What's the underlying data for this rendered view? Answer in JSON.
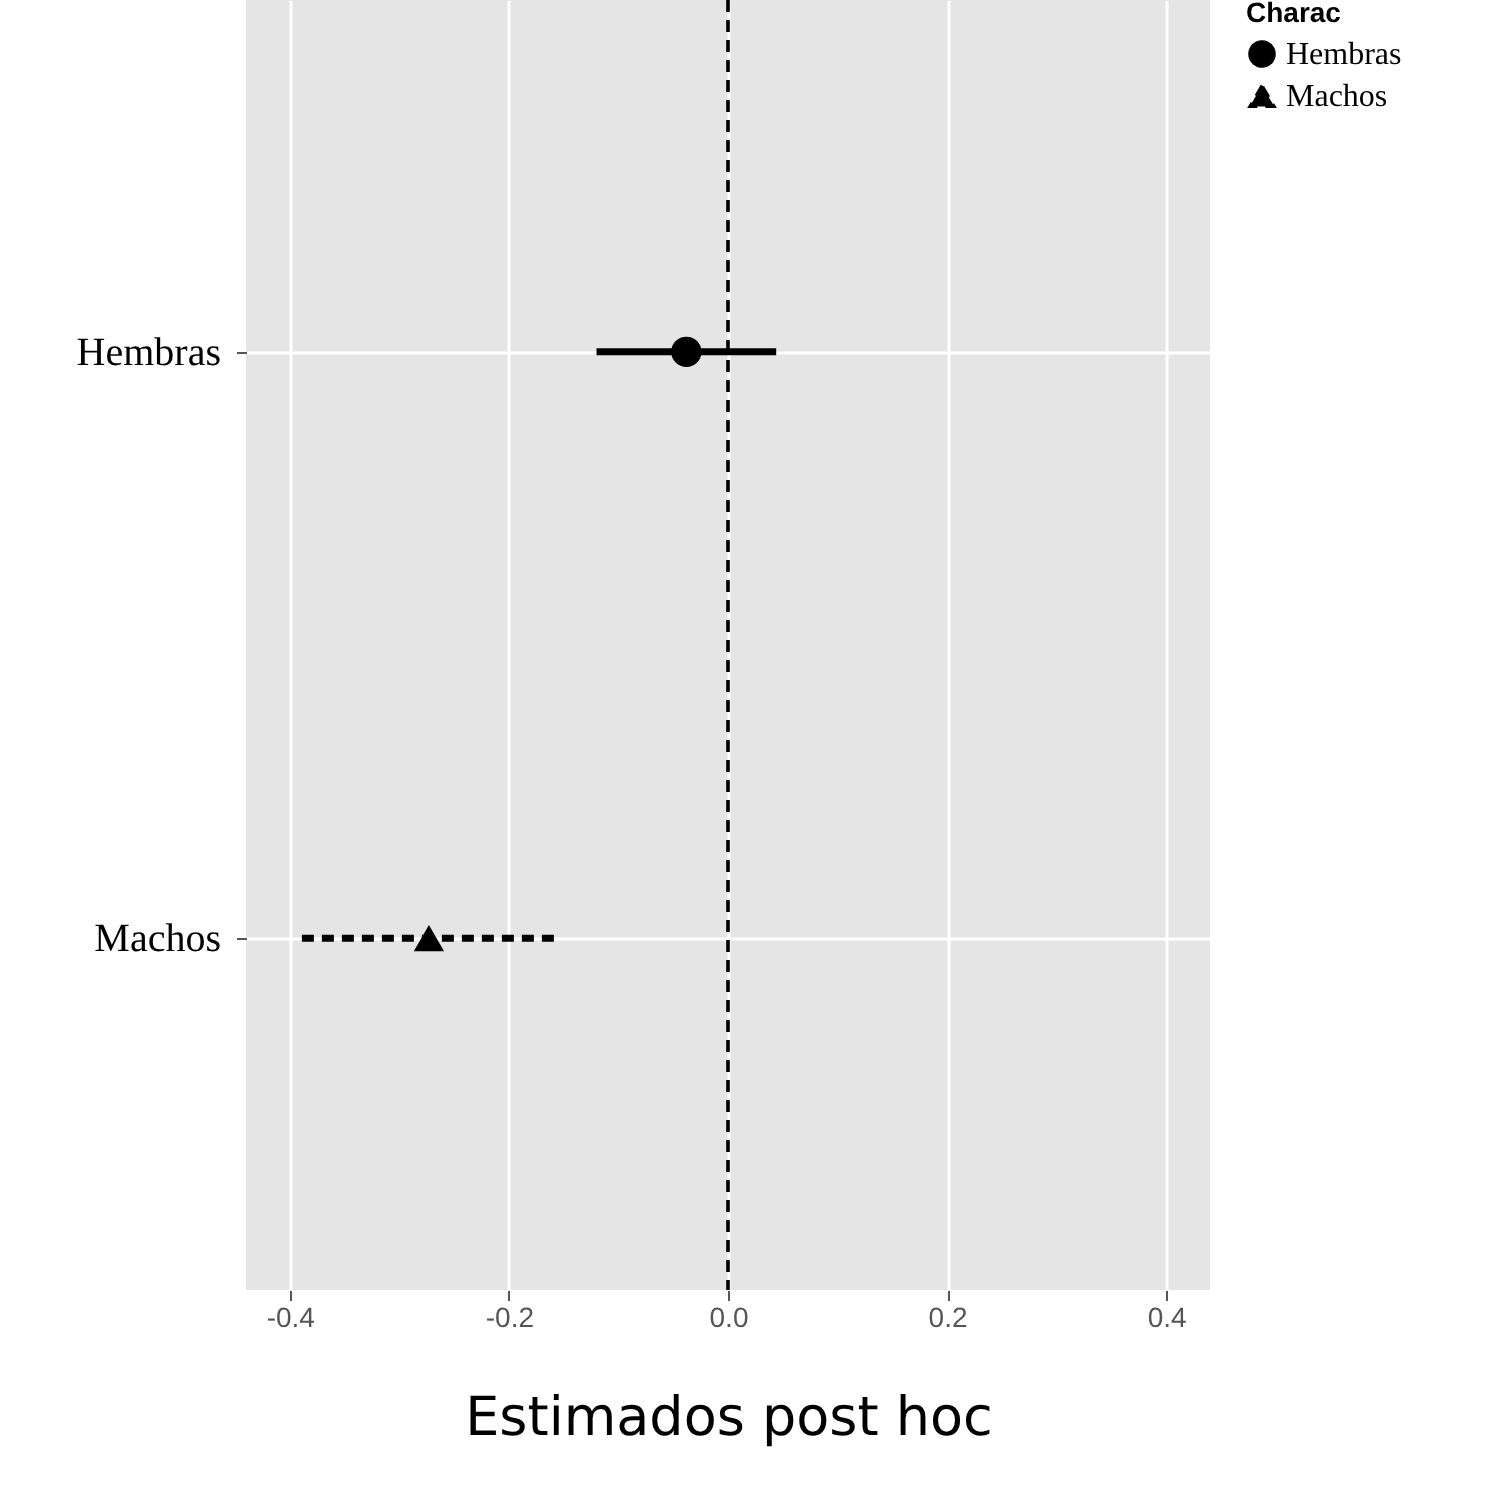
{
  "chart_data": {
    "type": "scatter",
    "orientation": "horizontal",
    "xlabel": "Estimados post hoc",
    "legend_title": "Charac",
    "legend": "right",
    "grid": true,
    "categories": [
      "Hembras",
      "Machos"
    ],
    "series": [
      {
        "name": "Hembras",
        "color": "#000000",
        "marker": "circle",
        "line_style": "solid",
        "values": [
          -0.038,
          null
        ],
        "errors": [
          [
            -0.12,
            0.044
          ],
          null
        ]
      },
      {
        "name": "Machos",
        "color": "#000000",
        "marker": "triangle",
        "line_style": "dashed",
        "values": [
          null,
          -0.273
        ],
        "errors": [
          null,
          [
            -0.389,
            -0.158
          ]
        ]
      }
    ],
    "xlim": [
      -0.44,
      0.44
    ],
    "xticks": [
      {
        "value": -0.4,
        "label": "-0.4"
      },
      {
        "value": -0.2,
        "label": "-0.2"
      },
      {
        "value": 0,
        "label": "0.0"
      },
      {
        "value": 0.2,
        "label": "0.2"
      },
      {
        "value": 0.4,
        "label": "0.4"
      }
    ],
    "ref_lines": [
      {
        "axis": "x",
        "value": 0,
        "color": "#000000",
        "line_style": "dashed"
      }
    ]
  }
}
